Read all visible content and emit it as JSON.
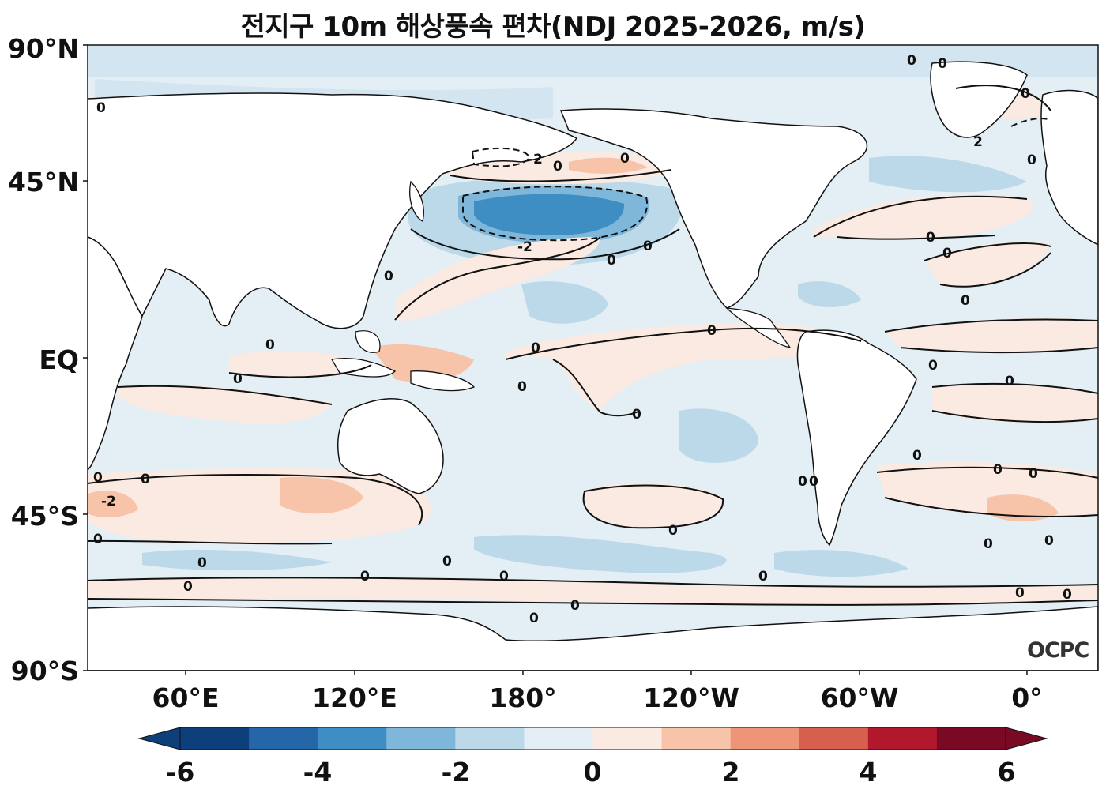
{
  "title": "전지구 10m 해상풍속 편차(NDJ 2025-2026, m/s)",
  "logo": "OCPC",
  "axes": {
    "lat_ticks": [
      "90°N",
      "45°N",
      "EQ",
      "45°S",
      "90°S"
    ],
    "lon_ticks": [
      "60°E",
      "120°E",
      "180°",
      "120°W",
      "60°W",
      "0°"
    ]
  },
  "colorbar": {
    "ticks": [
      "-6",
      "-4",
      "-2",
      "0",
      "2",
      "4",
      "6"
    ],
    "levels": [
      -6,
      -5,
      -4,
      -3,
      -2,
      -1,
      0,
      1,
      2,
      3,
      4,
      5,
      6
    ],
    "colors": [
      "#0d3f7a",
      "#2566a8",
      "#3e8ec4",
      "#7fb7da",
      "#bcd9ea",
      "#e4eef5",
      "#faeae1",
      "#f7c3a9",
      "#ed9576",
      "#d6604d",
      "#b2182b",
      "#7a0a23"
    ],
    "extend": "both"
  },
  "contour_labels": [
    "0",
    "-2",
    "2"
  ],
  "colors": {
    "ocean_neutral": "#e4eef5",
    "land": "#ffffff"
  }
}
